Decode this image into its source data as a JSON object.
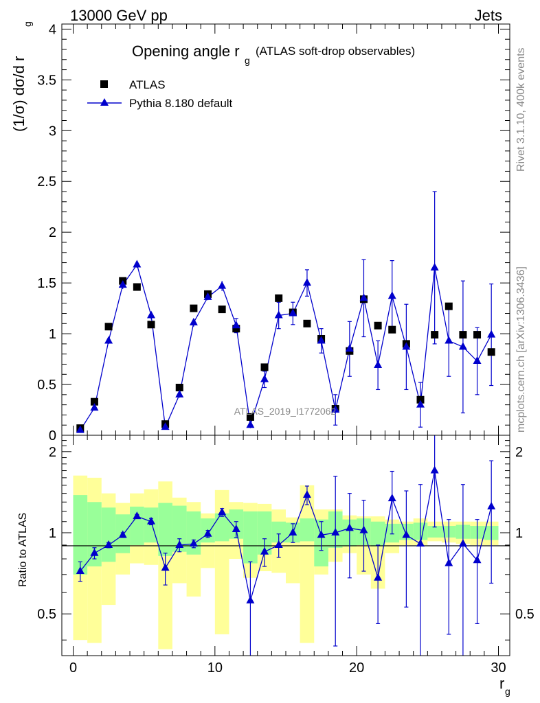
{
  "header": {
    "left": "13000 GeV pp",
    "right": "Jets"
  },
  "side_labels": {
    "rivet": "Rivet 3.1.10,  400k events",
    "mcplots": "mcplots.cern.ch [arXiv:1306.3436]"
  },
  "chart_data": {
    "type": "scatter",
    "title": {
      "main": "Opening angle r",
      "main_sub": "g",
      "suffix": "(ATLAS soft-drop observables)"
    },
    "watermark": "ATLAS_2019_I1772062",
    "xlabel": {
      "main": "r",
      "sub": "g"
    },
    "ylabel": {
      "prefix": "(1/σ) dσ/d r",
      "sub": "g"
    },
    "ratio_ylabel": "Ratio to ATLAS",
    "xlim": [
      -0.8,
      30.8
    ],
    "ylim": [
      0,
      4.05
    ],
    "ratio_ylim": [
      0.35,
      2.3
    ],
    "x_ticks": [
      "0",
      "10",
      "20",
      "30"
    ],
    "x_tick_values": [
      0,
      10,
      20,
      30
    ],
    "y_ticks": [
      "0",
      "0.5",
      "1",
      "1.5",
      "2",
      "2.5",
      "3",
      "3.5",
      "4"
    ],
    "y_tick_values": [
      0,
      0.5,
      1,
      1.5,
      2,
      2.5,
      3,
      3.5,
      4
    ],
    "ratio_y_ticks": [
      "0.5",
      "1",
      "2"
    ],
    "ratio_y_tick_values": [
      0.5,
      1,
      2
    ],
    "legend": {
      "position": "top-left",
      "entries": [
        "ATLAS",
        "Pythia 8.180 default"
      ]
    },
    "colors": {
      "data": "#000000",
      "mc": "#0000cc",
      "band_inner": "#99ff99",
      "band_outer": "#ffff99"
    },
    "bins_x": [
      0.5,
      1.5,
      2.5,
      3.5,
      4.5,
      5.5,
      6.5,
      7.5,
      8.5,
      9.5,
      10.5,
      11.5,
      12.5,
      13.5,
      14.5,
      15.5,
      16.5,
      17.5,
      18.5,
      19.5,
      20.5,
      21.5,
      22.5,
      23.5,
      24.5,
      25.5,
      26.5,
      27.5,
      28.5,
      29.5
    ],
    "series": [
      {
        "name": "ATLAS",
        "marker": "square",
        "y": [
          0.07,
          0.33,
          1.07,
          1.52,
          1.46,
          1.09,
          0.11,
          0.47,
          1.25,
          1.39,
          1.24,
          1.05,
          0.18,
          0.67,
          1.35,
          1.21,
          1.1,
          0.95,
          0.26,
          0.83,
          1.34,
          1.08,
          1.04,
          0.9,
          0.35,
          0.99,
          1.27,
          0.99,
          0.99,
          0.82
        ]
      },
      {
        "name": "Pythia 8.180 default",
        "marker": "triangle",
        "y": [
          0.05,
          0.27,
          0.93,
          1.48,
          1.68,
          1.18,
          0.08,
          0.4,
          1.11,
          1.36,
          1.47,
          1.08,
          0.1,
          0.55,
          1.18,
          1.2,
          1.5,
          0.93,
          0.25,
          0.85,
          1.35,
          0.69,
          1.37,
          0.87,
          0.3,
          1.65,
          0.93,
          0.87,
          0.73,
          0.99
        ],
        "yerr": [
          0.015,
          0.02,
          0.03,
          0.04,
          0.03,
          0.04,
          0.015,
          0.03,
          0.04,
          0.03,
          0.05,
          0.07,
          0.03,
          0.08,
          0.13,
          0.11,
          0.13,
          0.12,
          0.15,
          0.27,
          0.38,
          0.24,
          0.35,
          0.42,
          0.22,
          0.75,
          0.35,
          0.65,
          0.33,
          0.5
        ]
      }
    ],
    "ratio": {
      "y": [
        0.72,
        0.84,
        0.9,
        0.98,
        1.15,
        1.1,
        0.74,
        0.9,
        0.91,
        0.99,
        1.19,
        1.03,
        0.56,
        0.85,
        0.9,
        1.0,
        1.38,
        0.98,
        1.0,
        1.04,
        1.02,
        0.68,
        1.34,
        0.98,
        0.91,
        1.7,
        0.77,
        0.91,
        0.79,
        1.25
      ],
      "yerr": [
        0.06,
        0.04,
        0.02,
        0.02,
        0.02,
        0.03,
        0.1,
        0.05,
        0.03,
        0.03,
        0.04,
        0.07,
        0.22,
        0.1,
        0.09,
        0.08,
        0.11,
        0.12,
        0.62,
        0.36,
        0.3,
        0.22,
        0.35,
        0.45,
        0.6,
        0.65,
        0.35,
        0.6,
        0.33,
        0.6
      ],
      "band_inner_low": [
        0.7,
        0.75,
        0.78,
        0.84,
        0.9,
        0.92,
        0.82,
        0.85,
        0.83,
        0.92,
        0.93,
        0.95,
        0.77,
        0.83,
        0.92,
        0.92,
        0.93,
        0.75,
        0.88,
        0.89,
        0.9,
        0.89,
        0.92,
        0.94,
        0.94,
        0.96,
        0.96,
        0.95,
        0.95,
        0.94
      ],
      "band_inner_high": [
        1.38,
        1.3,
        1.24,
        1.17,
        1.25,
        1.24,
        1.29,
        1.26,
        1.2,
        1.13,
        1.18,
        1.22,
        1.2,
        1.2,
        1.1,
        1.09,
        1.13,
        1.12,
        1.2,
        1.12,
        1.13,
        1.1,
        1.08,
        1.08,
        1.09,
        1.06,
        1.06,
        1.07,
        1.06,
        1.06
      ],
      "band_outer_low": [
        0.4,
        0.39,
        0.54,
        0.7,
        0.77,
        0.76,
        0.37,
        0.65,
        0.58,
        0.74,
        0.42,
        0.8,
        0.68,
        0.72,
        0.71,
        0.65,
        0.39,
        0.7,
        0.78,
        0.84,
        0.7,
        0.62,
        0.84,
        0.9,
        0.9,
        0.93,
        0.92,
        0.91,
        0.9,
        0.9
      ],
      "band_outer_high": [
        1.63,
        1.6,
        1.4,
        1.29,
        1.4,
        1.45,
        1.55,
        1.35,
        1.3,
        1.18,
        1.44,
        1.3,
        1.29,
        1.28,
        1.22,
        1.14,
        1.5,
        1.22,
        1.22,
        1.16,
        1.15,
        1.15,
        1.12,
        1.1,
        1.13,
        1.1,
        1.1,
        1.1,
        1.1,
        1.1
      ]
    }
  }
}
